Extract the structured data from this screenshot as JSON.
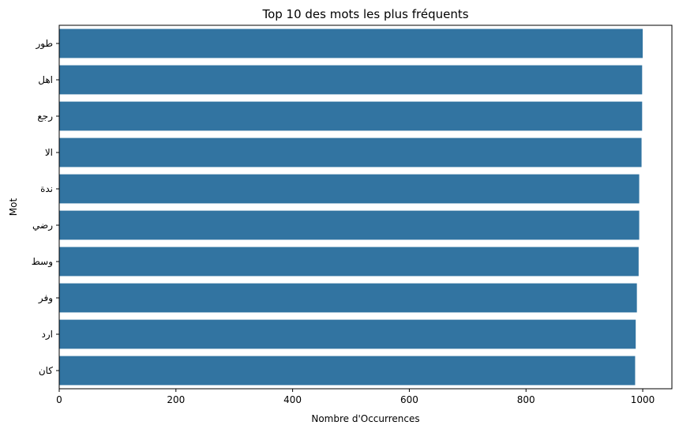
{
  "chart_data": {
    "type": "bar",
    "orientation": "horizontal",
    "title": "Top 10 des mots les plus fréquents",
    "xlabel": "Nombre d'Occurrences",
    "ylabel": "Mot",
    "categories": [
      "طور",
      "اهل",
      "رجع",
      "الا",
      "ندة",
      "رضي",
      "وسط",
      "وفر",
      "ارد",
      "كان"
    ],
    "values": [
      1000,
      999,
      999,
      998,
      994,
      994,
      993,
      990,
      988,
      987
    ],
    "xlim": [
      0,
      1050
    ],
    "xticks": [
      0,
      200,
      400,
      600,
      800,
      1000
    ],
    "grid": false,
    "bar_color": "#3274a1"
  }
}
